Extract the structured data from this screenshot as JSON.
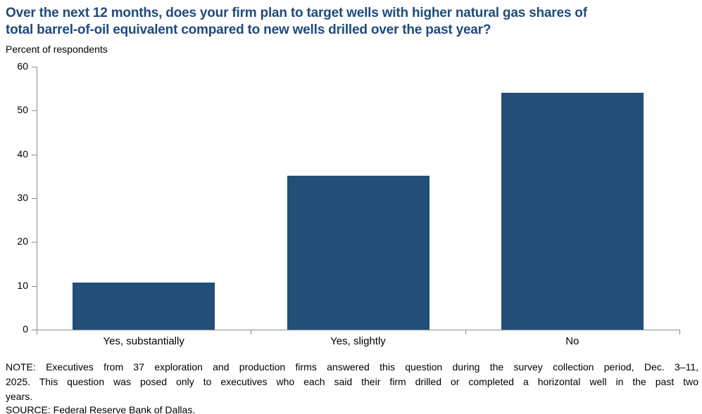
{
  "title_lines": [
    "Over the next 12 months, does your firm plan to target wells with higher natural gas shares of",
    "total barrel-of-oil equivalent compared to new wells drilled over the past year?"
  ],
  "subtitle": "Percent of respondents",
  "chart_data": {
    "type": "bar",
    "title": "Over the next 12 months, does your firm plan to target wells with higher natural gas shares of total barrel-of-oil equivalent compared to new wells drilled over the past year?",
    "categories": [
      "Yes, substantially",
      "Yes, slightly",
      "No"
    ],
    "values": [
      10.8,
      35.1,
      54.1
    ],
    "xlabel": "",
    "ylabel": "Percent of respondents",
    "ylim": [
      0,
      60
    ],
    "ytick_interval": 10,
    "grid": false,
    "legend": false,
    "bar_color": "#234E78",
    "axis_color": "#8C8C8C"
  },
  "note_lines": [
    "NOTE: Executives from 37 exploration and production firms answered this question during the survey collection period, Dec. 3–11,",
    "2025. This question was posed only to executives who each said their firm drilled or completed a horizontal well in the past two",
    "years."
  ],
  "source": "SOURCE: Federal Reserve Bank of Dallas.",
  "colors": {
    "title": "#1F4A7D",
    "bar": "#234E78",
    "axis": "#8C8C8C",
    "text": "#000000"
  }
}
